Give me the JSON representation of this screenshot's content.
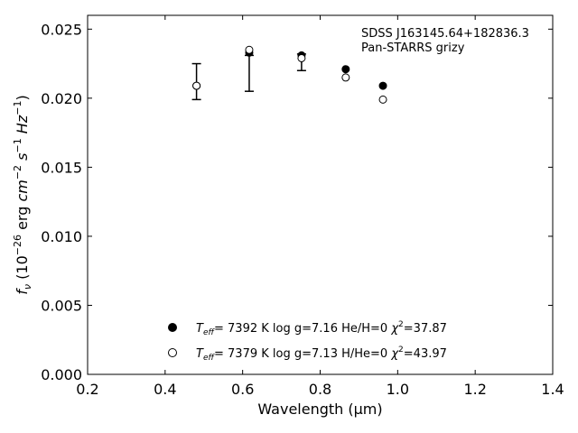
{
  "chart_data": {
    "type": "scatter",
    "title": "",
    "xlabel": "Wavelength (μm)",
    "ylabel": "f_ν (10^-26 erg cm^-2 s^-1 Hz^-1)",
    "xlim": [
      0.2,
      1.4
    ],
    "ylim": [
      0.0,
      0.026
    ],
    "x_ticks": [
      0.2,
      0.4,
      0.6,
      0.8,
      1.0,
      1.2,
      1.4
    ],
    "x_tick_labels": [
      "0.2",
      "0.4",
      "0.6",
      "0.8",
      "1.0",
      "1.2",
      "1.4"
    ],
    "y_ticks": [
      0.0,
      0.005,
      0.01,
      0.015,
      0.02,
      0.025
    ],
    "y_tick_labels": [
      "0.000",
      "0.005",
      "0.010",
      "0.015",
      "0.020",
      "0.025"
    ],
    "grid": false,
    "annotations": [
      "SDSS J163145.64+182836.3",
      "Pan-STARRS grizy"
    ],
    "observed": {
      "x": [
        0.481,
        0.617,
        0.752,
        0.866,
        0.962
      ],
      "y": [
        0.0212,
        0.0218,
        0.0226,
        null,
        null
      ],
      "yerr": [
        0.0013,
        0.0013,
        0.0006,
        null,
        null
      ]
    },
    "series": [
      {
        "name": "T_eff=  7392 K  log g=7.16  He/H=0  χ²=37.87",
        "marker": "filled-circle",
        "x": [
          0.481,
          0.617,
          0.752,
          0.866,
          0.962
        ],
        "y": [
          0.0209,
          0.0233,
          0.0231,
          0.0221,
          0.0209
        ]
      },
      {
        "name": "T_eff=  7379 K  log g=7.13  H/He=0  χ²=43.97",
        "marker": "open-circle",
        "x": [
          0.481,
          0.617,
          0.752,
          0.866,
          0.962
        ],
        "y": [
          0.0209,
          0.0235,
          0.0229,
          0.0215,
          0.0199
        ]
      }
    ],
    "legend": {
      "placement": "lower-center",
      "entries": [
        {
          "marker": "filled-circle",
          "teff": "7392 K",
          "logg": "log g=7.16",
          "comp": "He/H=0",
          "chi2": "=37.87"
        },
        {
          "marker": "open-circle",
          "teff": "7379 K",
          "logg": "log g=7.13",
          "comp": "H/He=0",
          "chi2": "=43.97"
        }
      ]
    }
  }
}
